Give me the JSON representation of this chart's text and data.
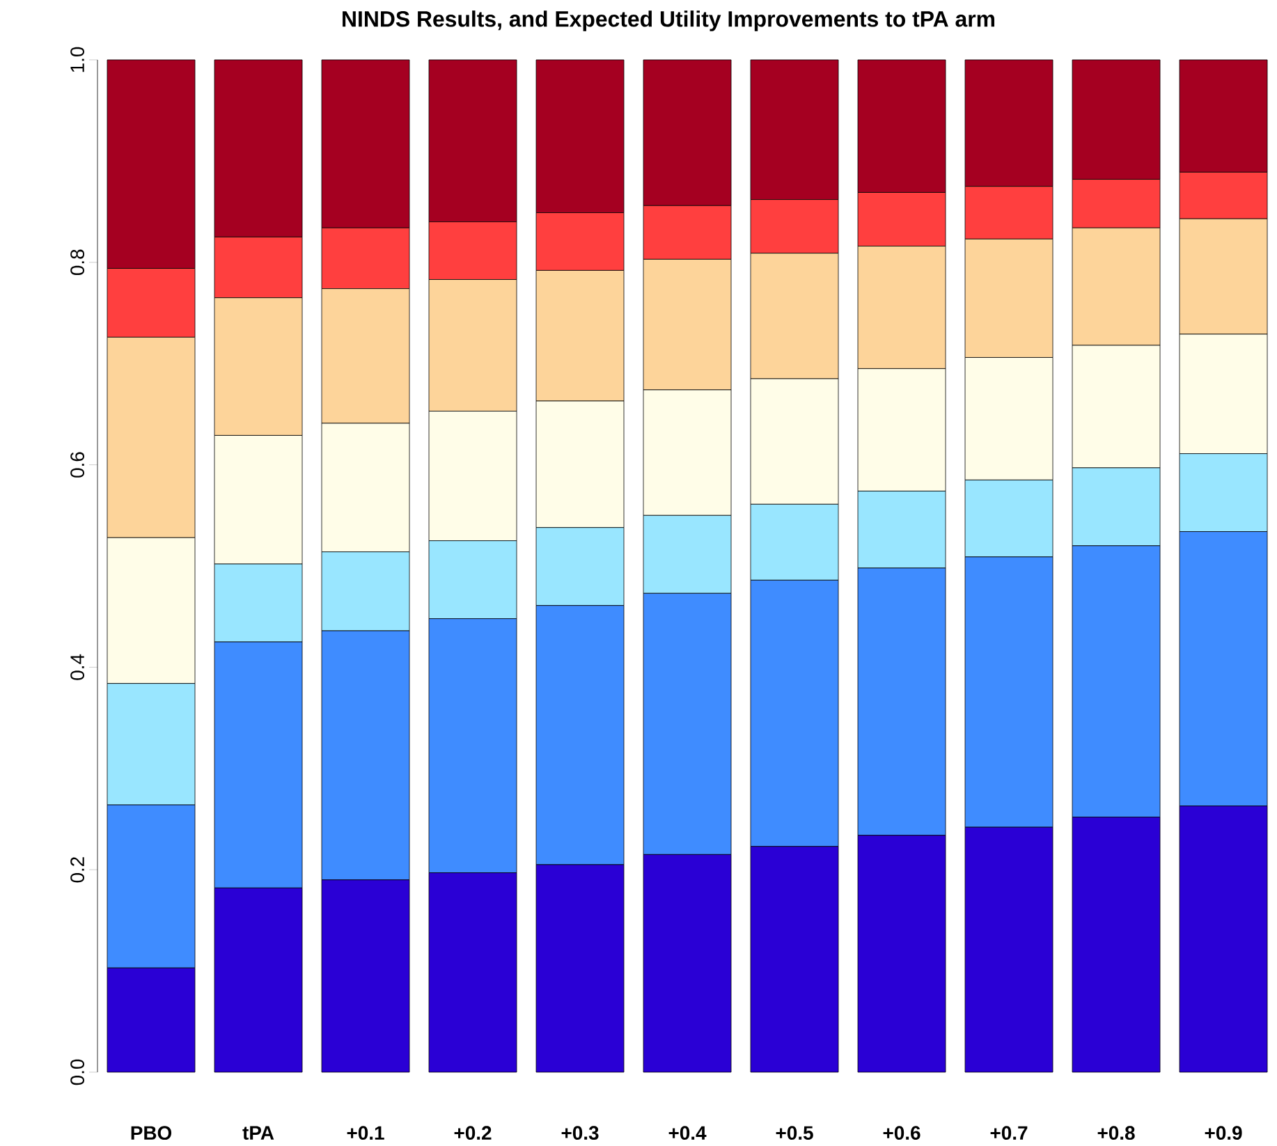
{
  "chart_data": {
    "type": "bar",
    "stacked": true,
    "title": "NINDS Results, and Expected Utility Improvements to tPA arm",
    "categories": [
      "PBO",
      "tPA",
      "+0.1",
      "+0.2",
      "+0.3",
      "+0.4",
      "+0.5",
      "+0.6",
      "+0.7",
      "+0.8",
      "+0.9"
    ],
    "series": [
      {
        "color": "#2a00d5",
        "values": [
          0.103,
          0.182,
          0.19,
          0.197,
          0.205,
          0.215,
          0.223,
          0.234,
          0.242,
          0.252,
          0.263
        ]
      },
      {
        "color": "#3f8cff",
        "values": [
          0.161,
          0.243,
          0.246,
          0.251,
          0.256,
          0.258,
          0.263,
          0.264,
          0.267,
          0.268,
          0.271
        ]
      },
      {
        "color": "#99e6ff",
        "values": [
          0.12,
          0.077,
          0.078,
          0.077,
          0.077,
          0.077,
          0.075,
          0.076,
          0.076,
          0.077,
          0.077
        ]
      },
      {
        "color": "#fffde8",
        "values": [
          0.144,
          0.127,
          0.127,
          0.128,
          0.125,
          0.124,
          0.124,
          0.121,
          0.121,
          0.121,
          0.118
        ]
      },
      {
        "color": "#fdd49a",
        "values": [
          0.198,
          0.136,
          0.133,
          0.13,
          0.129,
          0.129,
          0.124,
          0.121,
          0.117,
          0.116,
          0.114
        ]
      },
      {
        "color": "#ff3f3f",
        "values": [
          0.068,
          0.06,
          0.06,
          0.057,
          0.057,
          0.053,
          0.053,
          0.053,
          0.052,
          0.048,
          0.046
        ]
      },
      {
        "color": "#a50021",
        "values": [
          0.206,
          0.175,
          0.166,
          0.16,
          0.151,
          0.144,
          0.138,
          0.131,
          0.125,
          0.118,
          0.111
        ]
      }
    ],
    "ylim": [
      0,
      1
    ],
    "yticks": [
      {
        "value": 0,
        "label": "0.0"
      },
      {
        "value": 0.2,
        "label": "0.2"
      },
      {
        "value": 0.4,
        "label": "0.4"
      },
      {
        "value": 0.6,
        "label": "0.6"
      },
      {
        "value": 0.8,
        "label": "0.8"
      },
      {
        "value": 1,
        "label": "1.0"
      }
    ]
  }
}
